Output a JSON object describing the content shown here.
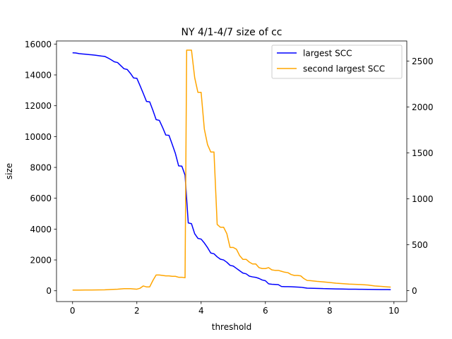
{
  "chart_data": {
    "type": "line",
    "title": "NY 4/1-4/7 size of cc",
    "xlabel": "threshold",
    "ylabel": "size",
    "xlim": [
      -0.5,
      10.4
    ],
    "ylim_left": [
      -700,
      16200
    ],
    "ylim_right": [
      -120,
      2720
    ],
    "xticks": [
      0,
      2,
      4,
      6,
      8,
      10
    ],
    "yticks_left": [
      0,
      2000,
      4000,
      6000,
      8000,
      10000,
      12000,
      14000,
      16000
    ],
    "yticks_right": [
      0,
      500,
      1000,
      1500,
      2000,
      2500
    ],
    "grid": false,
    "legend_position": "top-right",
    "series": [
      {
        "name": "largest SCC",
        "axis": "left",
        "color": "#0000ff",
        "x": [
          0,
          0.1,
          0.2,
          0.3,
          0.4,
          0.5,
          0.6,
          0.7,
          0.8,
          0.9,
          1.0,
          1.1,
          1.2,
          1.3,
          1.4,
          1.5,
          1.6,
          1.7,
          1.8,
          1.9,
          2.0,
          2.1,
          2.2,
          2.3,
          2.4,
          2.5,
          2.6,
          2.7,
          2.8,
          2.9,
          3.0,
          3.1,
          3.2,
          3.3,
          3.4,
          3.5,
          3.6,
          3.7,
          3.8,
          3.9,
          4.0,
          4.1,
          4.2,
          4.3,
          4.4,
          4.5,
          4.6,
          4.7,
          4.8,
          4.9,
          5.0,
          5.1,
          5.2,
          5.3,
          5.4,
          5.5,
          5.6,
          5.7,
          5.8,
          5.9,
          6.0,
          6.1,
          6.2,
          6.3,
          6.4,
          6.5,
          6.6,
          6.7,
          6.8,
          6.9,
          7.0,
          7.1,
          7.2,
          7.3,
          7.4,
          7.5,
          7.6,
          7.7,
          7.8,
          7.9,
          8.0,
          8.2,
          8.4,
          8.6,
          8.8,
          9.0,
          9.2,
          9.4,
          9.6,
          9.8,
          9.9
        ],
        "values": [
          15430,
          15420,
          15380,
          15360,
          15340,
          15320,
          15300,
          15280,
          15250,
          15220,
          15200,
          15100,
          14980,
          14850,
          14800,
          14600,
          14400,
          14350,
          14100,
          13800,
          13780,
          13300,
          12800,
          12280,
          12250,
          11700,
          11100,
          11050,
          10600,
          10100,
          10080,
          9500,
          8900,
          8100,
          8080,
          7500,
          4400,
          4350,
          3700,
          3400,
          3350,
          3100,
          2800,
          2450,
          2400,
          2200,
          2050,
          2000,
          1850,
          1650,
          1600,
          1450,
          1300,
          1150,
          1100,
          950,
          900,
          870,
          800,
          700,
          650,
          450,
          420,
          410,
          400,
          280,
          270,
          265,
          260,
          250,
          240,
          230,
          200,
          170,
          165,
          160,
          155,
          150,
          140,
          135,
          130,
          120,
          110,
          100,
          100,
          95,
          90,
          85,
          80,
          78,
          75
        ]
      },
      {
        "name": "second largest SCC",
        "axis": "right",
        "color": "#ffa500",
        "x": [
          0,
          0.2,
          0.4,
          0.6,
          0.8,
          1.0,
          1.2,
          1.4,
          1.5,
          1.6,
          1.8,
          1.9,
          2.0,
          2.1,
          2.2,
          2.3,
          2.4,
          2.5,
          2.6,
          2.7,
          2.8,
          2.9,
          3.0,
          3.1,
          3.2,
          3.3,
          3.4,
          3.5,
          3.55,
          3.6,
          3.7,
          3.8,
          3.9,
          4.0,
          4.1,
          4.2,
          4.3,
          4.4,
          4.5,
          4.6,
          4.7,
          4.8,
          4.9,
          5.0,
          5.1,
          5.2,
          5.3,
          5.4,
          5.5,
          5.6,
          5.7,
          5.8,
          5.9,
          6.0,
          6.1,
          6.2,
          6.3,
          6.4,
          6.5,
          6.6,
          6.7,
          6.8,
          6.9,
          7.0,
          7.1,
          7.2,
          7.3,
          7.4,
          7.6,
          7.8,
          8.0,
          8.2,
          8.4,
          8.6,
          8.8,
          9.0,
          9.2,
          9.3,
          9.4,
          9.6,
          9.8,
          9.9
        ],
        "values": [
          5,
          5,
          6,
          6,
          7,
          8,
          12,
          15,
          18,
          20,
          20,
          18,
          15,
          25,
          50,
          40,
          40,
          110,
          170,
          170,
          165,
          160,
          160,
          155,
          155,
          145,
          145,
          140,
          2620,
          2620,
          2620,
          2320,
          2160,
          2160,
          1760,
          1590,
          1510,
          1510,
          720,
          690,
          690,
          620,
          470,
          470,
          450,
          380,
          340,
          340,
          310,
          290,
          290,
          250,
          240,
          240,
          250,
          225,
          220,
          220,
          210,
          200,
          195,
          175,
          165,
          165,
          160,
          130,
          110,
          108,
          100,
          95,
          88,
          80,
          75,
          70,
          68,
          65,
          60,
          55,
          50,
          45,
          40,
          38
        ]
      }
    ]
  }
}
